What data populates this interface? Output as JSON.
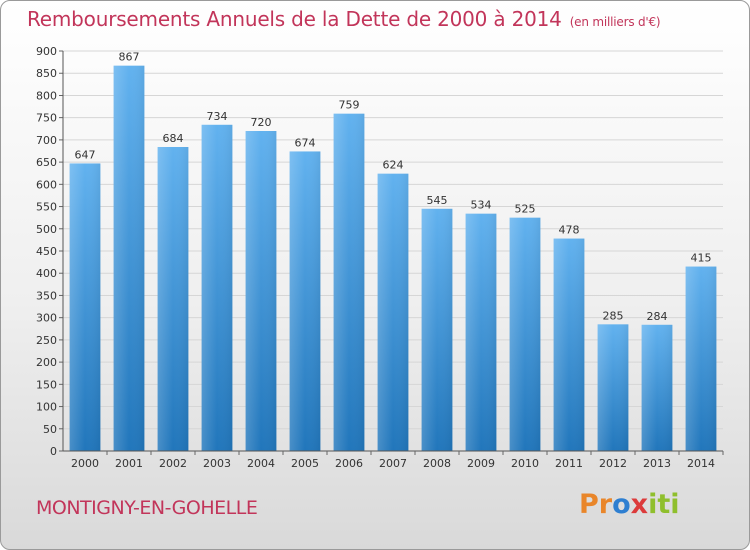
{
  "header": {
    "title": "Remboursements Annuels de la Dette de 2000 à 2014",
    "subtitle": "(en milliers d'€)"
  },
  "footer": {
    "city": "MONTIGNY-EN-GOHELLE",
    "logo_text": "Proxiti"
  },
  "colors": {
    "title": "#c2355a",
    "bar_top": "#62b2ef",
    "bar_bottom": "#2176bb",
    "grid": "#d6d6d6"
  },
  "chart_data": {
    "type": "bar",
    "title": "Remboursements Annuels de la Dette de 2000 à 2014",
    "subtitle": "(en milliers d'€)",
    "xlabel": "",
    "ylabel": "",
    "categories": [
      "2000",
      "2001",
      "2002",
      "2003",
      "2004",
      "2005",
      "2006",
      "2007",
      "2008",
      "2009",
      "2010",
      "2011",
      "2012",
      "2013",
      "2014"
    ],
    "values": [
      647,
      867,
      684,
      734,
      720,
      674,
      759,
      624,
      545,
      534,
      525,
      478,
      285,
      284,
      415
    ],
    "ylim": [
      0,
      900
    ],
    "yticks": [
      0,
      50,
      100,
      150,
      200,
      250,
      300,
      350,
      400,
      450,
      500,
      550,
      600,
      650,
      700,
      750,
      800,
      850,
      900
    ],
    "grid": true,
    "data_labels": true
  }
}
